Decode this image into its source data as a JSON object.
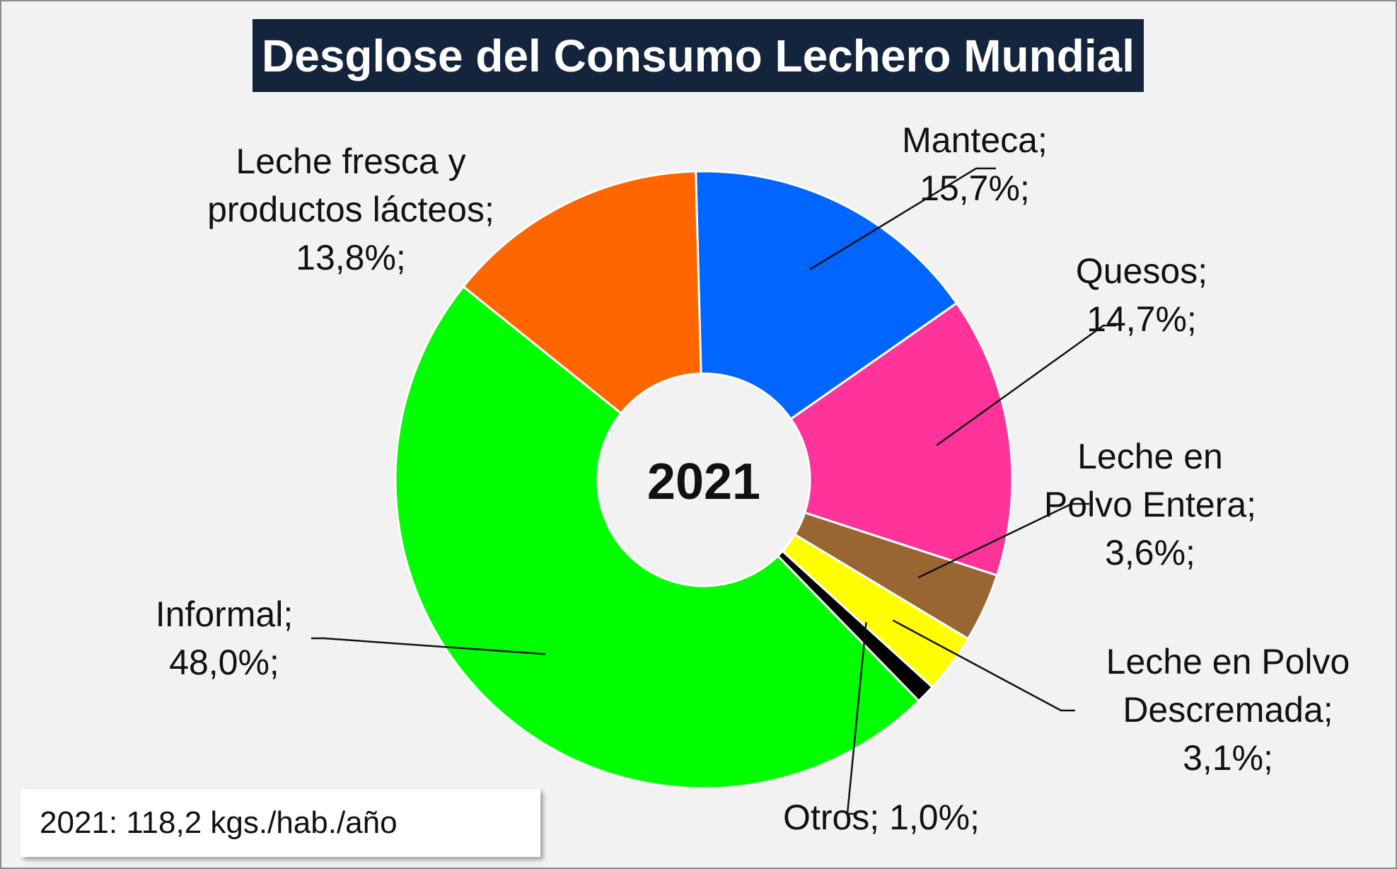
{
  "chart_data": {
    "type": "pie",
    "title": "Desglose del Consumo Lechero Mundial",
    "center_label": "2021",
    "note": "2021: 118,2 kgs./hab./año",
    "donut": true,
    "slices": [
      {
        "name": "Manteca",
        "value": 15.7,
        "color": "#0066ff",
        "label_lines": [
          "Manteca;",
          "15,7%;"
        ]
      },
      {
        "name": "Quesos",
        "value": 14.7,
        "color": "#ff3399",
        "label_lines": [
          "Quesos;",
          "14,7%;"
        ]
      },
      {
        "name": "Leche en Polvo Entera",
        "value": 3.6,
        "color": "#996633",
        "label_lines": [
          "Leche en",
          "Polvo Entera;",
          "3,6%;"
        ]
      },
      {
        "name": "Leche en Polvo Descremada",
        "value": 3.1,
        "color": "#ffff00",
        "label_lines": [
          "Leche en Polvo",
          "Descremada;",
          "3,1%;"
        ]
      },
      {
        "name": "Otros",
        "value": 1.0,
        "color": "#000000",
        "label_lines": [
          "Otros; 1,0%;"
        ]
      },
      {
        "name": "Informal",
        "value": 48.0,
        "color": "#00ff00",
        "label_lines": [
          "Informal;",
          "48,0%;"
        ]
      },
      {
        "name": "Leche fresca y productos lácteos",
        "value": 13.8,
        "color": "#ff6600",
        "label_lines": [
          "Leche fresca y",
          "productos lácteos;",
          "13,8%;"
        ]
      }
    ]
  }
}
